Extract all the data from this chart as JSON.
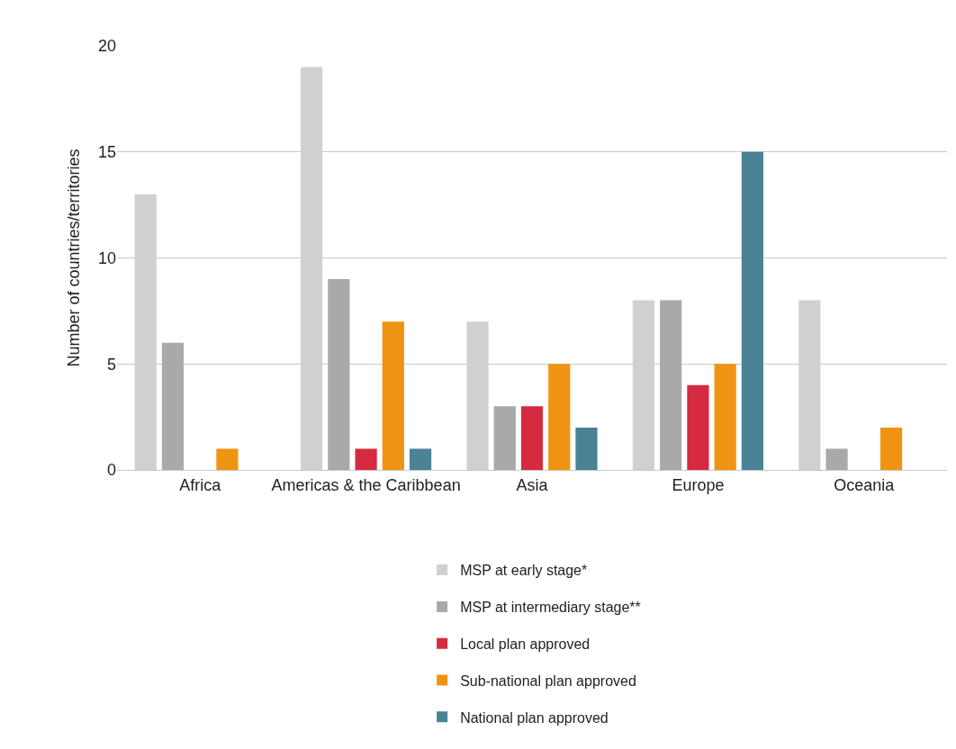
{
  "chart_data": {
    "type": "bar",
    "ylabel": "Number of countries/territories",
    "categories": [
      "Africa",
      "Americas & the Caribbean",
      "Asia",
      "Europe",
      "Oceania"
    ],
    "series": [
      {
        "name": "MSP at early stage*",
        "color": "#d0d0d0",
        "values": [
          13,
          19,
          7,
          8,
          8
        ]
      },
      {
        "name": "MSP at intermediary stage**",
        "color": "#a9a9a9",
        "values": [
          6,
          9,
          3,
          8,
          1
        ]
      },
      {
        "name": "Local plan approved",
        "color": "#d62a40",
        "values": [
          0,
          1,
          3,
          4,
          0
        ]
      },
      {
        "name": "Sub-national plan approved",
        "color": "#ef9412",
        "values": [
          1,
          7,
          5,
          5,
          2
        ]
      },
      {
        "name": "National plan approved",
        "color": "#4a8296",
        "values": [
          0,
          1,
          2,
          15,
          0
        ]
      }
    ],
    "ylim": [
      0,
      20
    ],
    "yticks": [
      0,
      5,
      10,
      15,
      20
    ],
    "grid": "y",
    "legend": "bottom"
  }
}
